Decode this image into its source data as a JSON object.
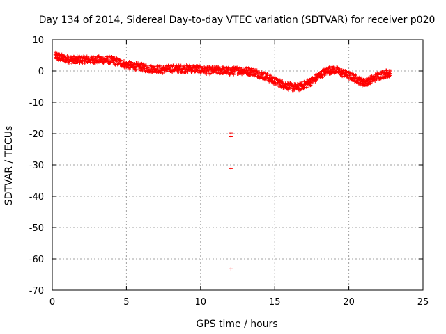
{
  "chart_data": {
    "type": "scatter",
    "title": "Day 134 of 2014, Sidereal Day-to-day VTEC variation (SDTVAR) for receiver p020",
    "xlabel": "GPS time / hours",
    "ylabel": "SDTVAR / TECUs",
    "xlim": [
      0,
      25
    ],
    "ylim": [
      -70,
      10
    ],
    "xticks": [
      0,
      5,
      10,
      15,
      20,
      25
    ],
    "yticks": [
      10,
      0,
      -10,
      -20,
      -30,
      -40,
      -50,
      -60,
      -70
    ],
    "grid": true,
    "marker": "+",
    "color": "#ff0000",
    "series": [
      {
        "name": "SDTVAR",
        "band_center": [
          [
            0.2,
            4.8
          ],
          [
            0.5,
            4.3
          ],
          [
            1.0,
            3.8
          ],
          [
            1.5,
            3.5
          ],
          [
            2.0,
            3.6
          ],
          [
            2.5,
            3.7
          ],
          [
            3.0,
            3.5
          ],
          [
            3.5,
            3.6
          ],
          [
            4.0,
            3.4
          ],
          [
            4.5,
            2.8
          ],
          [
            5.0,
            2.0
          ],
          [
            5.5,
            1.5
          ],
          [
            6.0,
            1.2
          ],
          [
            6.5,
            0.8
          ],
          [
            7.0,
            0.6
          ],
          [
            7.5,
            0.4
          ],
          [
            8.0,
            0.8
          ],
          [
            8.5,
            0.7
          ],
          [
            9.0,
            0.7
          ],
          [
            9.5,
            0.8
          ],
          [
            10.0,
            0.5
          ],
          [
            10.5,
            0.1
          ],
          [
            11.0,
            0.2
          ],
          [
            11.5,
            0.3
          ],
          [
            12.0,
            -0.2
          ],
          [
            12.5,
            0.2
          ],
          [
            13.0,
            0.0
          ],
          [
            13.5,
            -0.2
          ],
          [
            14.0,
            -1.0
          ],
          [
            14.5,
            -2.0
          ],
          [
            15.0,
            -3.2
          ],
          [
            15.5,
            -4.2
          ],
          [
            16.0,
            -5.0
          ],
          [
            16.5,
            -5.3
          ],
          [
            17.0,
            -4.5
          ],
          [
            17.5,
            -3.2
          ],
          [
            18.0,
            -1.5
          ],
          [
            18.5,
            0.0
          ],
          [
            19.0,
            0.5
          ],
          [
            19.5,
            -0.5
          ],
          [
            20.0,
            -1.5
          ],
          [
            20.5,
            -2.5
          ],
          [
            21.0,
            -3.8
          ],
          [
            21.5,
            -2.8
          ],
          [
            22.0,
            -1.5
          ],
          [
            22.5,
            -0.8
          ],
          [
            22.8,
            -0.8
          ]
        ],
        "outliers": [
          [
            12.05,
            -19.8
          ],
          [
            12.05,
            -21.0
          ],
          [
            12.05,
            -31.2
          ],
          [
            12.05,
            -63.2
          ]
        ]
      }
    ]
  }
}
